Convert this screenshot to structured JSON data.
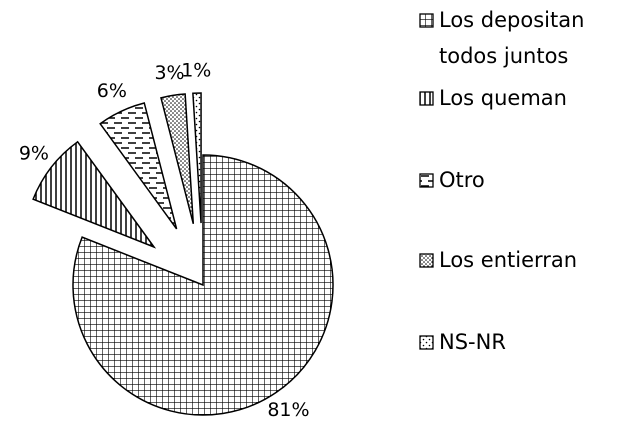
{
  "chart_data": {
    "type": "pie",
    "categories": [
      "Los depositan todos juntos",
      "Los queman",
      "Otro",
      "Los entierran",
      "NS-NR"
    ],
    "values": [
      81,
      9,
      6,
      3,
      1
    ],
    "value_labels": [
      "81%",
      "9%",
      "6%",
      "3%",
      "1%"
    ],
    "color": "#000000",
    "legend": "right"
  }
}
